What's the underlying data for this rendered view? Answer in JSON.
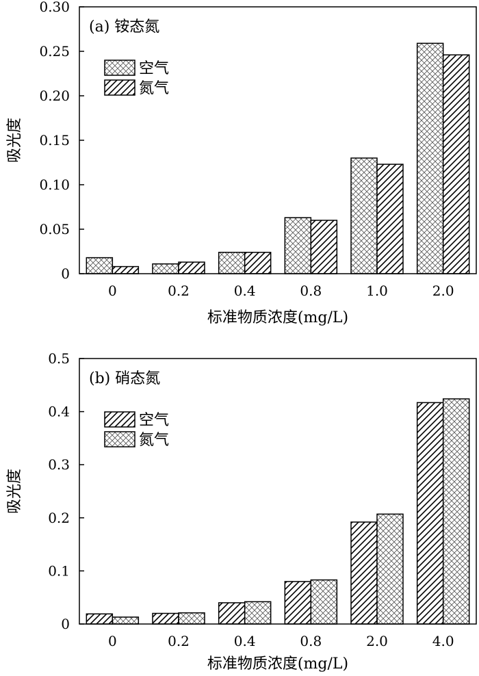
{
  "chart_data": [
    {
      "type": "bar",
      "panel_label": "(a) 铵态氮",
      "xlabel": "标准物质浓度(mg/L)",
      "ylabel": "吸光度",
      "categories": [
        "0",
        "0.2",
        "0.4",
        "0.8",
        "1.0",
        "2.0"
      ],
      "ylim": [
        0,
        0.3
      ],
      "yticks": [
        "0",
        "0.05",
        "0.10",
        "0.15",
        "0.20",
        "0.25",
        "0.30"
      ],
      "series": [
        {
          "name": "空气",
          "pattern": "crosshatch",
          "values": [
            0.018,
            0.011,
            0.024,
            0.063,
            0.13,
            0.259
          ]
        },
        {
          "name": "氮气",
          "pattern": "diagonal",
          "values": [
            0.008,
            0.013,
            0.024,
            0.06,
            0.123,
            0.246
          ]
        }
      ],
      "legend_position": "top-left"
    },
    {
      "type": "bar",
      "panel_label": "(b) 硝态氮",
      "xlabel": "标准物质浓度(mg/L)",
      "ylabel": "吸光度",
      "categories": [
        "0",
        "0.2",
        "0.4",
        "0.8",
        "2.0",
        "4.0"
      ],
      "ylim": [
        0,
        0.5
      ],
      "yticks": [
        "0",
        "0.1",
        "0.2",
        "0.3",
        "0.4",
        "0.5"
      ],
      "series": [
        {
          "name": "空气",
          "pattern": "diagonal",
          "values": [
            0.019,
            0.02,
            0.04,
            0.08,
            0.192,
            0.417
          ]
        },
        {
          "name": "氮气",
          "pattern": "crosshatch",
          "values": [
            0.013,
            0.021,
            0.042,
            0.083,
            0.207,
            0.424
          ]
        }
      ],
      "legend_position": "top-left"
    }
  ],
  "colors": {
    "bar_fill": "#ffffff",
    "stroke": "#000000"
  }
}
